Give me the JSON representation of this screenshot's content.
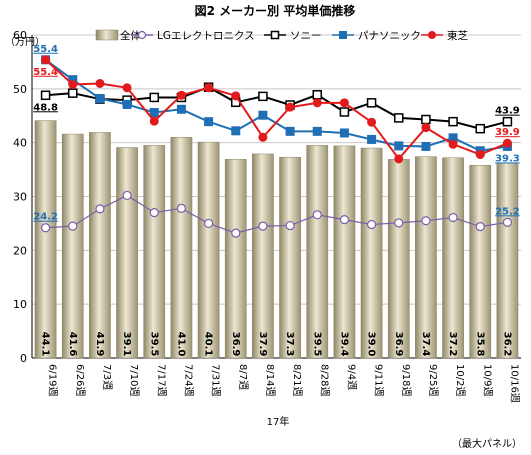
{
  "chart_data": {
    "type": "bar",
    "title": "図2 メーカー別 平均単価推移",
    "ylabel": "（万円）",
    "xlabel": "17年",
    "note": "（最大パネル）",
    "ylim": [
      0,
      60
    ],
    "yticks": [
      "0",
      "10",
      "20",
      "30",
      "40",
      "50",
      "60"
    ],
    "grid": true,
    "legend_position": "top",
    "categories": [
      "6/19週",
      "6/26週",
      "7/3週",
      "7/10週",
      "7/17週",
      "7/24週",
      "7/31週",
      "8/7週",
      "8/14週",
      "8/21週",
      "8/28週",
      "9/4週",
      "9/11週",
      "9/18週",
      "9/25週",
      "10/2週",
      "10/9週",
      "10/16週"
    ],
    "bar_labels": [
      "44.1",
      "41.6",
      "41.9",
      "39.1",
      "39.5",
      "41.0",
      "40.1",
      "36.9",
      "37.9",
      "37.3",
      "39.5",
      "39.4",
      "39.0",
      "36.9",
      "37.4",
      "37.2",
      "35.8",
      "36.2"
    ],
    "series": [
      {
        "name": "全体",
        "kind": "bar",
        "color": "#b5ad8a",
        "values": [
          44.1,
          41.6,
          41.9,
          39.1,
          39.5,
          41.0,
          40.1,
          36.9,
          37.9,
          37.3,
          39.5,
          39.4,
          39.0,
          36.9,
          37.4,
          37.2,
          35.8,
          36.2
        ]
      },
      {
        "name": "LGエレクトロニクス",
        "kind": "line",
        "color": "#7b5ea8",
        "marker": "circle-open",
        "values": [
          24.2,
          24.5,
          27.7,
          30.2,
          27.0,
          27.8,
          25.0,
          23.2,
          24.5,
          24.6,
          26.6,
          25.7,
          24.8,
          25.1,
          25.5,
          26.1,
          24.4,
          25.2
        ]
      },
      {
        "name": "ソニー",
        "kind": "line",
        "color": "#000000",
        "marker": "square-open",
        "values": [
          48.8,
          49.2,
          48.1,
          47.9,
          48.4,
          48.4,
          50.3,
          47.5,
          48.6,
          47.0,
          48.9,
          45.7,
          47.4,
          44.6,
          44.3,
          43.9,
          42.6,
          43.9
        ]
      },
      {
        "name": "パナソニック",
        "kind": "line",
        "color": "#1f6fb4",
        "marker": "square-filled",
        "values": [
          55.4,
          51.7,
          48.2,
          47.1,
          45.6,
          46.2,
          43.9,
          42.2,
          45.1,
          42.1,
          42.1,
          41.8,
          40.6,
          39.4,
          39.3,
          40.9,
          38.5,
          39.3
        ]
      },
      {
        "name": "東芝",
        "kind": "line",
        "color": "#e31a1c",
        "marker": "circle-filled",
        "values": [
          55.4,
          50.8,
          51.0,
          50.2,
          44.0,
          48.8,
          50.2,
          48.7,
          41.0,
          46.6,
          47.4,
          47.4,
          43.8,
          37.0,
          42.8,
          39.7,
          37.8,
          39.9
        ]
      }
    ],
    "callouts": [
      {
        "series": "パナソニック",
        "index": 0,
        "text": "55.4",
        "pos": "above",
        "color": "#1f6fb4"
      },
      {
        "series": "東芝",
        "index": 0,
        "text": "55.4",
        "pos": "below",
        "color": "#e31a1c"
      },
      {
        "series": "ソニー",
        "index": 0,
        "text": "48.8",
        "pos": "below",
        "color": "#000000"
      },
      {
        "series": "LGエレクトロニクス",
        "index": 0,
        "text": "24.2",
        "pos": "above",
        "color": "#1f6fb4"
      },
      {
        "series": "ソニー",
        "index": 17,
        "text": "43.9",
        "pos": "above",
        "color": "#000000"
      },
      {
        "series": "東芝",
        "index": 17,
        "text": "39.9",
        "pos": "above",
        "color": "#e31a1c"
      },
      {
        "series": "パナソニック",
        "index": 17,
        "text": "39.3",
        "pos": "below",
        "color": "#1f6fb4"
      },
      {
        "series": "LGエレクトロニクス",
        "index": 17,
        "text": "25.2",
        "pos": "above",
        "color": "#1f6fb4"
      }
    ]
  }
}
